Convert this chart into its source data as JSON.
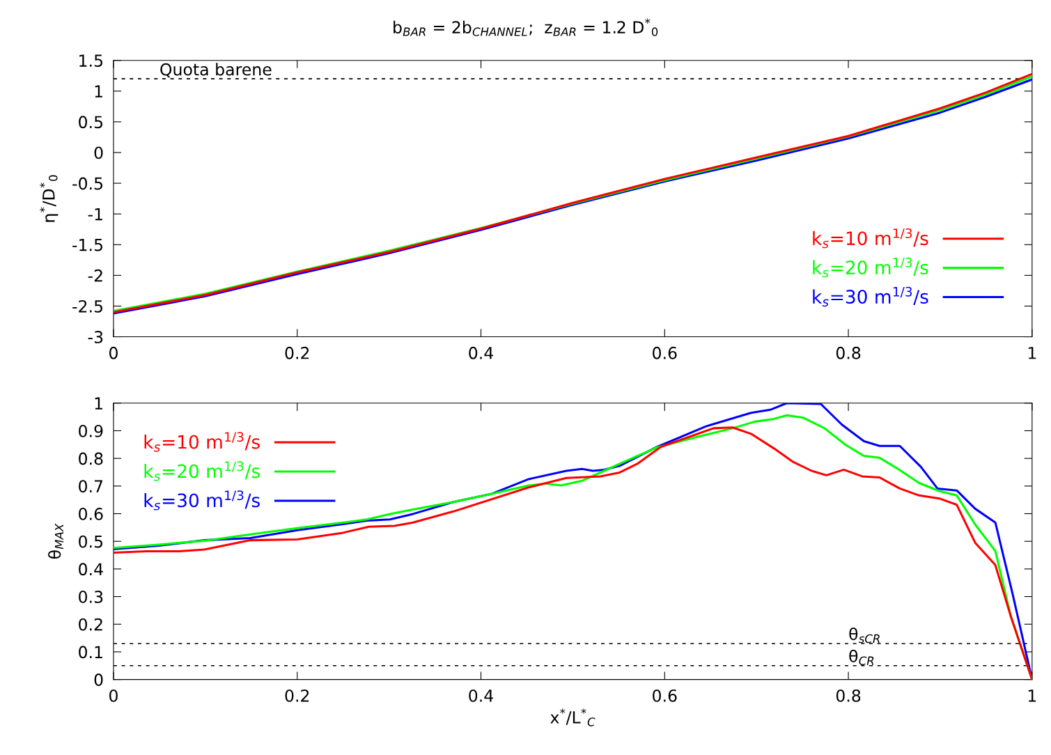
{
  "chart_data": [
    {
      "type": "line",
      "title": "b$_{BAR}$ = 2b$_{CHANNEL}$;  z$_{BAR}$ = 1.2 D$^{*}$$_{0}$",
      "ylabel": "η$^{*}$/D$^{*}$$_{0}$",
      "xlim": [
        0,
        1
      ],
      "xticks": [
        0,
        0.2,
        0.4,
        0.6,
        0.8,
        1
      ],
      "ylim": [
        -3,
        1.5
      ],
      "yticks": [
        -3,
        -2.5,
        -2,
        -1.5,
        -1,
        -0.5,
        0,
        0.5,
        1,
        1.5
      ],
      "grid": false,
      "legend": "bottom right",
      "line_style": "solid",
      "marker": "none",
      "ref_lines": [
        {
          "axis": "y",
          "value": 1.2,
          "label": "Quota barene",
          "color": "#000000",
          "line_style": "dashed"
        }
      ],
      "series": [
        {
          "name": "k$_{s}$=10 m$^{1/3}$/s",
          "color": "#ff0000",
          "x": [
            0,
            0.1,
            0.2,
            0.3,
            0.4,
            0.5,
            0.6,
            0.7,
            0.8,
            0.9,
            0.95,
            1
          ],
          "values": [
            -2.6,
            -2.32,
            -1.95,
            -1.62,
            -1.24,
            -0.82,
            -0.43,
            -0.08,
            0.27,
            0.72,
            0.98,
            1.28
          ]
        },
        {
          "name": "k$_{s}$=20 m$^{1/3}$/s",
          "color": "#00ff00",
          "x": [
            0,
            0.1,
            0.2,
            0.3,
            0.4,
            0.5,
            0.6,
            0.7,
            0.8,
            0.9,
            0.95,
            1
          ],
          "values": [
            -2.58,
            -2.3,
            -1.94,
            -1.6,
            -1.23,
            -0.83,
            -0.45,
            -0.1,
            0.26,
            0.69,
            0.95,
            1.24
          ]
        },
        {
          "name": "k$_{s}$=30 m$^{1/3}$/s",
          "color": "#0000ff",
          "x": [
            0,
            0.1,
            0.2,
            0.3,
            0.4,
            0.5,
            0.6,
            0.7,
            0.8,
            0.9,
            0.95,
            1
          ],
          "values": [
            -2.62,
            -2.34,
            -1.98,
            -1.64,
            -1.26,
            -0.85,
            -0.47,
            -0.13,
            0.23,
            0.65,
            0.91,
            1.19
          ]
        }
      ]
    },
    {
      "type": "line",
      "xlabel": "x$^{*}$/L$^{*}$$_{C}$",
      "ylabel": "θ$_{MAX}$",
      "xlim": [
        0,
        1
      ],
      "xticks": [
        0,
        0.2,
        0.4,
        0.6,
        0.8,
        1
      ],
      "ylim": [
        0,
        1
      ],
      "yticks": [
        0,
        0.1,
        0.2,
        0.3,
        0.4,
        0.5,
        0.6,
        0.7,
        0.8,
        0.9,
        1
      ],
      "grid": false,
      "legend": "top left",
      "line_style": "solid",
      "marker": "none",
      "ref_lines": [
        {
          "axis": "y",
          "value": 0.13,
          "label": "θ$_{sCR}$",
          "color": "#000000",
          "line_style": "dashed"
        },
        {
          "axis": "y",
          "value": 0.05,
          "label": "θ$_{CR}$",
          "color": "#000000",
          "line_style": "dashed"
        }
      ],
      "series": [
        {
          "name": "k$_{s}$=10 m$^{1/3}$/s",
          "color": "#ff0000",
          "x": [
            0,
            0.036,
            0.071,
            0.099,
            0.149,
            0.2,
            0.25,
            0.278,
            0.306,
            0.326,
            0.37,
            0.452,
            0.493,
            0.53,
            0.551,
            0.571,
            0.596,
            0.653,
            0.674,
            0.694,
            0.719,
            0.739,
            0.76,
            0.776,
            0.795,
            0.815,
            0.834,
            0.856,
            0.877,
            0.899,
            0.918,
            0.938,
            0.96,
            0.977,
            1
          ],
          "values": [
            0.459,
            0.464,
            0.464,
            0.47,
            0.504,
            0.507,
            0.531,
            0.553,
            0.556,
            0.568,
            0.608,
            0.695,
            0.729,
            0.735,
            0.749,
            0.782,
            0.842,
            0.909,
            0.912,
            0.889,
            0.836,
            0.789,
            0.755,
            0.739,
            0.759,
            0.735,
            0.731,
            0.691,
            0.666,
            0.655,
            0.632,
            0.495,
            0.414,
            0.227,
            0
          ]
        },
        {
          "name": "k$_{s}$=20 m$^{1/3}$/s",
          "color": "#00ff00",
          "x": [
            0,
            0.049,
            0.099,
            0.149,
            0.2,
            0.25,
            0.276,
            0.301,
            0.326,
            0.37,
            0.411,
            0.452,
            0.47,
            0.487,
            0.51,
            0.534,
            0.563,
            0.592,
            0.633,
            0.674,
            0.698,
            0.719,
            0.733,
            0.751,
            0.774,
            0.797,
            0.817,
            0.834,
            0.854,
            0.877,
            0.899,
            0.918,
            0.938,
            0.96,
            0.977,
            1
          ],
          "values": [
            0.476,
            0.488,
            0.502,
            0.525,
            0.548,
            0.568,
            0.579,
            0.599,
            0.615,
            0.642,
            0.671,
            0.702,
            0.709,
            0.702,
            0.719,
            0.755,
            0.798,
            0.84,
            0.876,
            0.909,
            0.933,
            0.943,
            0.956,
            0.947,
            0.909,
            0.849,
            0.809,
            0.802,
            0.762,
            0.711,
            0.682,
            0.666,
            0.561,
            0.465,
            0.227,
            0
          ]
        },
        {
          "name": "k$_{s}$=30 m$^{1/3}$/s",
          "color": "#0000ff",
          "x": [
            0,
            0.049,
            0.099,
            0.149,
            0.2,
            0.25,
            0.276,
            0.301,
            0.326,
            0.37,
            0.411,
            0.452,
            0.493,
            0.51,
            0.522,
            0.534,
            0.551,
            0.592,
            0.645,
            0.694,
            0.715,
            0.733,
            0.77,
            0.793,
            0.817,
            0.834,
            0.856,
            0.879,
            0.897,
            0.918,
            0.938,
            0.96,
            0.979,
            1
          ],
          "values": [
            0.472,
            0.484,
            0.504,
            0.512,
            0.54,
            0.562,
            0.575,
            0.579,
            0.599,
            0.642,
            0.671,
            0.725,
            0.755,
            0.762,
            0.755,
            0.759,
            0.773,
            0.842,
            0.916,
            0.965,
            0.976,
            1.0,
            0.997,
            0.922,
            0.862,
            0.845,
            0.845,
            0.769,
            0.691,
            0.684,
            0.618,
            0.568,
            0.307,
            0
          ]
        }
      ]
    }
  ]
}
